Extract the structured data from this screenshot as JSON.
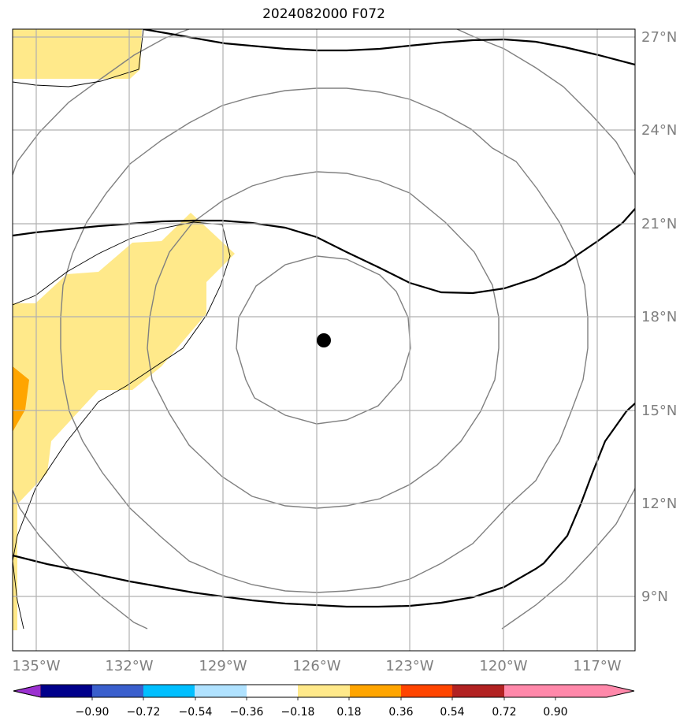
{
  "title": "2024082000 F072",
  "map": {
    "lat_labels": [
      "27°N",
      "24°N",
      "21°N",
      "18°N",
      "15°N",
      "12°N",
      "9°N"
    ],
    "lon_labels": [
      "135°W",
      "132°W",
      "129°W",
      "126°W",
      "123°W",
      "120°W",
      "117°W"
    ],
    "storm_center": {
      "lon": -125.8,
      "lat": 17.3
    }
  },
  "colorbar": {
    "ticks": [
      "−0.90",
      "−0.72",
      "−0.54",
      "−0.36",
      "−0.18",
      "0.18",
      "0.36",
      "0.54",
      "0.72",
      "0.90"
    ],
    "colors": [
      "#9b30d0",
      "#00008b",
      "#3a5fcd",
      "#00bfff",
      "#b0e2ff",
      "#ffffff",
      "#ffe98a",
      "#ffa500",
      "#ff4500",
      "#b22222",
      "#ff88aa"
    ]
  }
}
